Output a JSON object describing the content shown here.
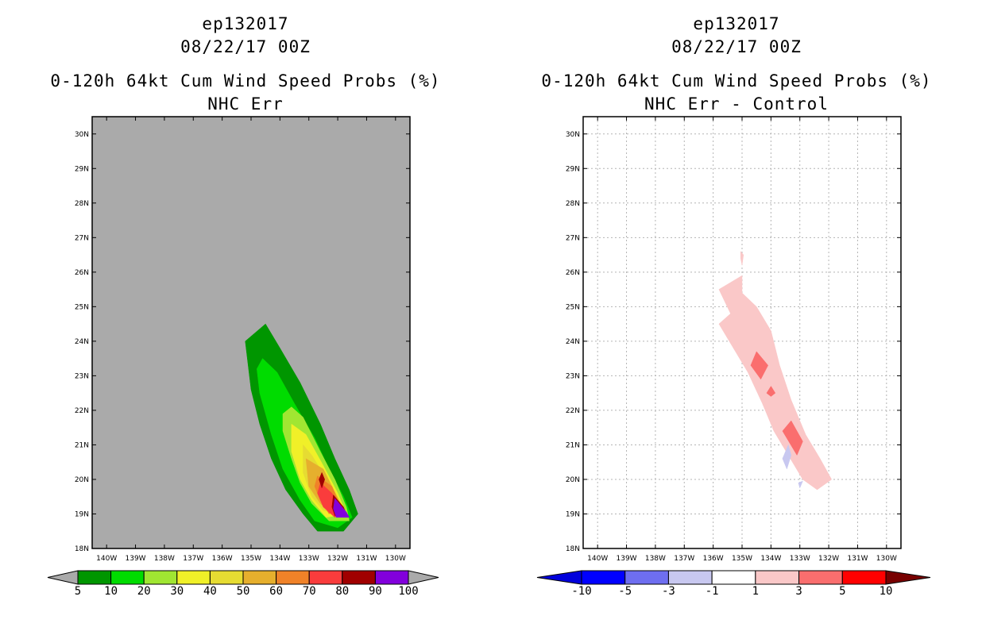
{
  "left_panel": {
    "title_storm": "ep132017",
    "title_date": "08/22/17 00Z",
    "title_product": "0-120h 64kt Cum Wind Speed Probs (%)",
    "title_subtitle": "NHC Err"
  },
  "right_panel": {
    "title_storm": "ep132017",
    "title_date": "08/22/17 00Z",
    "title_product": "0-120h 64kt Cum Wind Speed Probs (%)",
    "title_subtitle": "NHC Err - Control"
  },
  "chart_data": [
    {
      "type": "filled-contour-map",
      "title": "0-120h 64kt Cum Wind Speed Probs (%)",
      "subtitle": "NHC Err",
      "background_color": "#aaaaaa",
      "grid": false,
      "xlim": [
        -140.5,
        -129.5
      ],
      "ylim": [
        18,
        30.5
      ],
      "x_ticks": [
        -140,
        -139,
        -138,
        -137,
        -136,
        -135,
        -134,
        -133,
        -132,
        -131,
        -130
      ],
      "x_tick_labels": [
        "140W",
        "139W",
        "138W",
        "137W",
        "136W",
        "135W",
        "134W",
        "133W",
        "132W",
        "131W",
        "130W"
      ],
      "y_ticks": [
        18,
        19,
        20,
        21,
        22,
        23,
        24,
        25,
        26,
        27,
        28,
        29,
        30
      ],
      "y_tick_labels": [
        "18N",
        "19N",
        "20N",
        "21N",
        "22N",
        "23N",
        "24N",
        "25N",
        "26N",
        "27N",
        "28N",
        "29N",
        "30N"
      ],
      "colorbar": {
        "labels": [
          "5",
          "10",
          "20",
          "30",
          "40",
          "50",
          "60",
          "70",
          "80",
          "90",
          "100"
        ],
        "colors": [
          "#009600",
          "#00dc00",
          "#a0e632",
          "#f0f028",
          "#e6dc32",
          "#e6af2d",
          "#f08228",
          "#fa3c3c",
          "#a00000",
          "#8200dc"
        ]
      },
      "contours": [
        {
          "level": 5,
          "color": "#009600",
          "points": [
            [
              -135.2,
              24
            ],
            [
              -134.5,
              24.5
            ],
            [
              -134,
              23.8
            ],
            [
              -133.3,
              22.8
            ],
            [
              -132.6,
              21.6
            ],
            [
              -132.1,
              20.6
            ],
            [
              -131.6,
              19.7
            ],
            [
              -131.3,
              19
            ],
            [
              -131.8,
              18.5
            ],
            [
              -132.7,
              18.5
            ],
            [
              -133.2,
              19
            ],
            [
              -133.8,
              19.7
            ],
            [
              -134.3,
              20.6
            ],
            [
              -134.7,
              21.6
            ],
            [
              -135,
              22.6
            ]
          ]
        },
        {
          "level": 10,
          "color": "#00dc00",
          "points": [
            [
              -134.6,
              23.5
            ],
            [
              -134.1,
              23.1
            ],
            [
              -133.5,
              22.2
            ],
            [
              -132.8,
              21.2
            ],
            [
              -132.3,
              20.3
            ],
            [
              -131.8,
              19.5
            ],
            [
              -131.5,
              18.9
            ],
            [
              -132,
              18.6
            ],
            [
              -132.8,
              18.8
            ],
            [
              -133.3,
              19.4
            ],
            [
              -133.9,
              20.3
            ],
            [
              -134.3,
              21.3
            ],
            [
              -134.7,
              22.5
            ],
            [
              -134.8,
              23.2
            ]
          ]
        },
        {
          "level": 20,
          "color": "#a0e632",
          "points": [
            [
              -133.6,
              22.1
            ],
            [
              -133.2,
              21.8
            ],
            [
              -132.6,
              20.8
            ],
            [
              -132.1,
              20
            ],
            [
              -131.7,
              19.2
            ],
            [
              -131.6,
              18.8
            ],
            [
              -132.3,
              18.8
            ],
            [
              -132.9,
              19.3
            ],
            [
              -133.3,
              19.9
            ],
            [
              -133.6,
              20.6
            ],
            [
              -133.9,
              21.4
            ],
            [
              -133.9,
              21.9
            ]
          ]
        },
        {
          "level": 30,
          "color": "#f0f028",
          "points": [
            [
              -133.6,
              21.6
            ],
            [
              -133.1,
              21.3
            ],
            [
              -132.5,
              20.4
            ],
            [
              -132,
              19.6
            ],
            [
              -131.7,
              19
            ],
            [
              -132.4,
              18.9
            ],
            [
              -132.9,
              19.4
            ],
            [
              -133.3,
              20
            ],
            [
              -133.6,
              20.8
            ]
          ]
        },
        {
          "level": 40,
          "color": "#e6dc32",
          "points": [
            [
              -133.2,
              21
            ],
            [
              -132.9,
              20.7
            ],
            [
              -132.3,
              19.9
            ],
            [
              -131.9,
              19.3
            ],
            [
              -131.9,
              19
            ],
            [
              -132.5,
              19.1
            ],
            [
              -132.9,
              19.5
            ],
            [
              -133.2,
              20.2
            ]
          ]
        },
        {
          "level": 50,
          "color": "#e6af2d",
          "points": [
            [
              -133.1,
              20.6
            ],
            [
              -132.5,
              20.3
            ],
            [
              -132.2,
              19.8
            ],
            [
              -131.9,
              19.3
            ],
            [
              -132.2,
              19
            ],
            [
              -132.6,
              19.3
            ],
            [
              -133,
              19.8
            ]
          ]
        },
        {
          "level": 60,
          "color": "#f08228",
          "points": [
            [
              -132.7,
              20.1
            ],
            [
              -132.2,
              19.8
            ],
            [
              -131.9,
              19.2
            ],
            [
              -132.3,
              19
            ],
            [
              -132.6,
              19.4
            ],
            [
              -132.8,
              19.8
            ]
          ]
        },
        {
          "level": 70,
          "color": "#fa3c3c",
          "points": [
            [
              -132.6,
              19.9
            ],
            [
              -132.2,
              19.6
            ],
            [
              -131.8,
              19.1
            ],
            [
              -132.1,
              18.9
            ],
            [
              -132.5,
              19.2
            ],
            [
              -132.7,
              19.6
            ]
          ]
        },
        {
          "level": 80,
          "color": "#a00000",
          "points": [
            [
              -132.15,
              19.55
            ],
            [
              -131.8,
              19.2
            ],
            [
              -131.7,
              19
            ],
            [
              -132.1,
              18.95
            ],
            [
              -132.2,
              19.2
            ]
          ]
        },
        {
          "level": 90,
          "color": "#8200dc",
          "points": [
            [
              -132.1,
              19.45
            ],
            [
              -131.7,
              19.05
            ],
            [
              -131.6,
              18.9
            ],
            [
              -132.05,
              18.9
            ],
            [
              -132.15,
              19.15
            ]
          ]
        },
        {
          "level": 80,
          "color": "#a00000",
          "points": [
            [
              -132.55,
              20.2
            ],
            [
              -132.45,
              20
            ],
            [
              -132.55,
              19.75
            ],
            [
              -132.65,
              20
            ]
          ]
        }
      ]
    },
    {
      "type": "filled-contour-map",
      "title": "0-120h 64kt Cum Wind Speed Probs (%)",
      "subtitle": "NHC Err - Control",
      "background_color": "#ffffff",
      "grid": true,
      "xlim": [
        -140.5,
        -129.5
      ],
      "ylim": [
        18,
        30.5
      ],
      "x_ticks": [
        -140,
        -139,
        -138,
        -137,
        -136,
        -135,
        -134,
        -133,
        -132,
        -131,
        -130
      ],
      "x_tick_labels": [
        "140W",
        "139W",
        "138W",
        "137W",
        "136W",
        "135W",
        "134W",
        "133W",
        "132W",
        "131W",
        "130W"
      ],
      "y_ticks": [
        18,
        19,
        20,
        21,
        22,
        23,
        24,
        25,
        26,
        27,
        28,
        29,
        30
      ],
      "y_tick_labels": [
        "18N",
        "19N",
        "20N",
        "21N",
        "22N",
        "23N",
        "24N",
        "25N",
        "26N",
        "27N",
        "28N",
        "29N",
        "30N"
      ],
      "colorbar": {
        "labels": [
          "-10",
          "-5",
          "-3",
          "-1",
          "1",
          "3",
          "5",
          "10"
        ],
        "colors": [
          "#0000dc",
          "#0000ff",
          "#6e6ef0",
          "#c8c8f0",
          "#ffffff",
          "#fac8c8",
          "#fa6e6e",
          "#ff0000",
          "#780000"
        ]
      },
      "contours": [
        {
          "level": 1,
          "color": "#fac8c8",
          "points": [
            [
              -135.8,
              25.5
            ],
            [
              -135,
              25.9
            ],
            [
              -135,
              25.4
            ],
            [
              -134.5,
              25
            ],
            [
              -134,
              24.3
            ],
            [
              -133.7,
              23.3
            ],
            [
              -133.3,
              22.3
            ],
            [
              -132.8,
              21.3
            ],
            [
              -132.3,
              20.6
            ],
            [
              -131.9,
              20
            ],
            [
              -132.4,
              19.7
            ],
            [
              -132.9,
              20
            ],
            [
              -133.4,
              20.7
            ],
            [
              -133.9,
              21.4
            ],
            [
              -134.3,
              22.2
            ],
            [
              -134.8,
              23.1
            ],
            [
              -135.3,
              23.8
            ],
            [
              -135.8,
              24.5
            ],
            [
              -135.4,
              24.8
            ]
          ]
        },
        {
          "level": 3,
          "color": "#fa6e6e",
          "points": [
            [
              -134.5,
              23.7
            ],
            [
              -134.1,
              23.3
            ],
            [
              -134.35,
              22.9
            ],
            [
              -134.7,
              23.3
            ]
          ]
        },
        {
          "level": 3,
          "color": "#fa6e6e",
          "points": [
            [
              -134,
              22.7
            ],
            [
              -133.85,
              22.5
            ],
            [
              -134,
              22.4
            ],
            [
              -134.15,
              22.5
            ]
          ]
        },
        {
          "level": 3,
          "color": "#fa6e6e",
          "points": [
            [
              -133.3,
              21.7
            ],
            [
              -132.9,
              21.1
            ],
            [
              -133.1,
              20.7
            ],
            [
              -133.6,
              21.4
            ]
          ]
        },
        {
          "level": 1,
          "color": "#fac8c8",
          "points": [
            [
              -135.05,
              26.6
            ],
            [
              -134.95,
              26.5
            ],
            [
              -135,
              26.2
            ],
            [
              -135.05,
              26.4
            ]
          ]
        },
        {
          "level": -1,
          "color": "#c8c8f0",
          "points": [
            [
              -133.4,
              21
            ],
            [
              -133.3,
              20.7
            ],
            [
              -133.45,
              20.3
            ],
            [
              -133.6,
              20.6
            ]
          ]
        },
        {
          "level": -1,
          "color": "#c8c8f0",
          "points": [
            [
              -133.05,
              19.9
            ],
            [
              -132.9,
              19.95
            ],
            [
              -133,
              19.75
            ]
          ]
        }
      ]
    }
  ]
}
